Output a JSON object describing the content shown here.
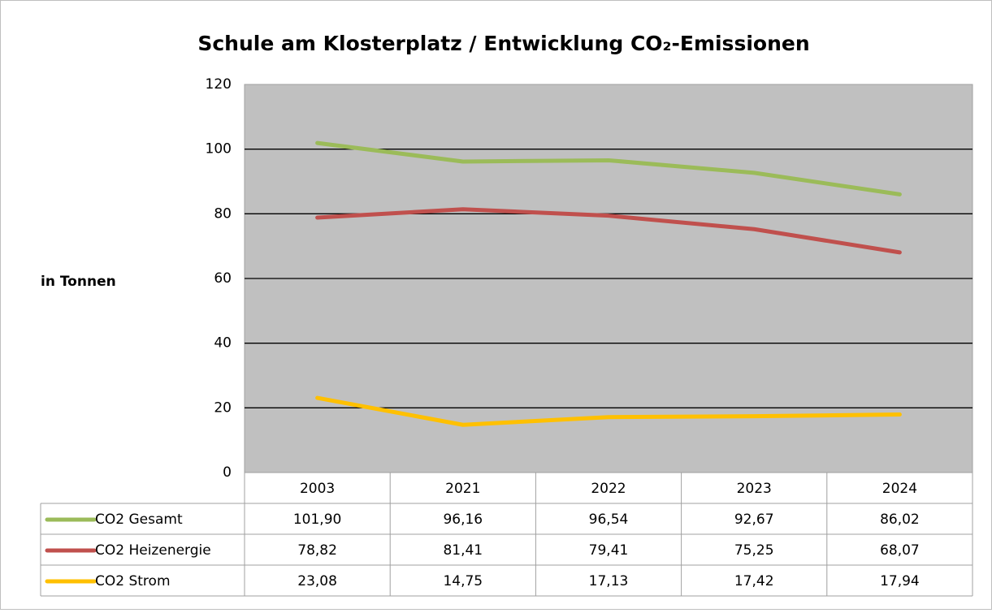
{
  "chart_data": {
    "type": "line",
    "title": "Schule am Klosterplatz / Entwicklung CO₂-Emissionen",
    "y_label": "in Tonnen",
    "categories": [
      "2003",
      "2021",
      "2022",
      "2023",
      "2024"
    ],
    "series": [
      {
        "name": "CO2 Gesamt",
        "color": "#9bbb59",
        "values": [
          101.9,
          96.16,
          96.54,
          92.67,
          86.02
        ],
        "value_labels": [
          "101,90",
          "96,16",
          "96,54",
          "92,67",
          "86,02"
        ]
      },
      {
        "name": "CO2 Heizenergie",
        "color": "#c0504d",
        "values": [
          78.82,
          81.41,
          79.41,
          75.25,
          68.07
        ],
        "value_labels": [
          "78,82",
          "81,41",
          "79,41",
          "75,25",
          "68,07"
        ]
      },
      {
        "name": "CO2 Strom",
        "color": "#ffc000",
        "values": [
          23.08,
          14.75,
          17.13,
          17.42,
          17.94
        ],
        "value_labels": [
          "23,08",
          "14,75",
          "17,13",
          "17,42",
          "17,94"
        ]
      }
    ],
    "ylim": [
      0,
      120
    ],
    "yticks": [
      0,
      20,
      40,
      60,
      80,
      100,
      120
    ],
    "grid": true,
    "data_table": true
  }
}
